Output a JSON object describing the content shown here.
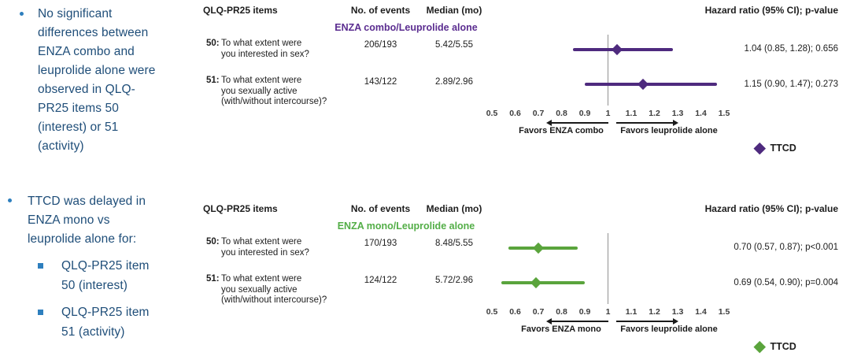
{
  "colors": {
    "note_text": "#1f4e79",
    "bullet_marker": "#2e7fbe",
    "combo_accent": "#5b2d90",
    "combo_plot": "#4e2a7e",
    "mono_accent": "#53ae47",
    "mono_plot": "#5aa43c",
    "reference_line": "#909090",
    "table_text": "#1d1d1d"
  },
  "notes": {
    "bullet1": "No significant\ndifferences between\nENZA combo and\nleuprolide alone were\nobserved in QLQ-\nPR25 items 50\n(interest) or 51\n(activity)",
    "bullet2": "TTCD was delayed in\nENZA mono vs\nleuprolide alone for:",
    "bullet2_subitems": [
      "QLQ-PR25 item\n50 (interest)",
      "QLQ-PR25 item\n51 (activity)"
    ]
  },
  "chart_data": [
    {
      "type": "forest",
      "title": "ENZA combo/Leuprolide alone",
      "columns": {
        "items": "QLQ-PR25 items",
        "events": "No. of events",
        "median": "Median (mo)",
        "hazard": "Hazard ratio (95% CI); p-value"
      },
      "rows": [
        {
          "item": "50:",
          "question": "To what extent were\nyou interested in sex?",
          "events": "206/193",
          "median_mo": "5.42/5.55",
          "hr": 1.04,
          "ci_low": 0.85,
          "ci_high": 1.28,
          "hr_label": "1.04 (0.85, 1.28); 0.656"
        },
        {
          "item": "51:",
          "question": "To what extent were\nyou sexually active\n(with/without intercourse)?",
          "events": "143/122",
          "median_mo": "2.89/2.96",
          "hr": 1.15,
          "ci_low": 0.9,
          "ci_high": 1.47,
          "hr_label": "1.15 (0.90, 1.47); 0.273"
        }
      ],
      "xaxis": {
        "min": 0.5,
        "max": 1.5,
        "ref_line": 1,
        "ticks": [
          0.5,
          0.6,
          0.7,
          0.8,
          0.9,
          1,
          1.1,
          1.2,
          1.3,
          1.4,
          1.5
        ]
      },
      "favors_left": "Favors ENZA combo",
      "favors_right": "Favors leuprolide alone",
      "legend_label": "TTCD",
      "accent_color": "#5b2d90",
      "plot_color": "#4e2a7e"
    },
    {
      "type": "forest",
      "title": "ENZA mono/Leuprolide alone",
      "columns": {
        "items": "QLQ-PR25 items",
        "events": "No. of events",
        "median": "Median (mo)",
        "hazard": "Hazard ratio (95% CI); p-value"
      },
      "rows": [
        {
          "item": "50:",
          "question": "To what extent were\nyou interested in sex?",
          "events": "170/193",
          "median_mo": "8.48/5.55",
          "hr": 0.7,
          "ci_low": 0.57,
          "ci_high": 0.87,
          "hr_label": "0.70 (0.57, 0.87); p<0.001"
        },
        {
          "item": "51:",
          "question": "To what extent were\nyou sexually active\n(with/without intercourse)?",
          "events": "124/122",
          "median_mo": "5.72/2.96",
          "hr": 0.69,
          "ci_low": 0.54,
          "ci_high": 0.9,
          "hr_label": "0.69 (0.54, 0.90); p=0.004"
        }
      ],
      "xaxis": {
        "min": 0.5,
        "max": 1.5,
        "ref_line": 1,
        "ticks": [
          0.5,
          0.6,
          0.7,
          0.8,
          0.9,
          1,
          1.1,
          1.2,
          1.3,
          1.4,
          1.5
        ]
      },
      "favors_left": "Favors ENZA mono",
      "favors_right": "Favors leuprolide alone",
      "legend_label": "TTCD",
      "accent_color": "#53ae47",
      "plot_color": "#5aa43c"
    }
  ]
}
